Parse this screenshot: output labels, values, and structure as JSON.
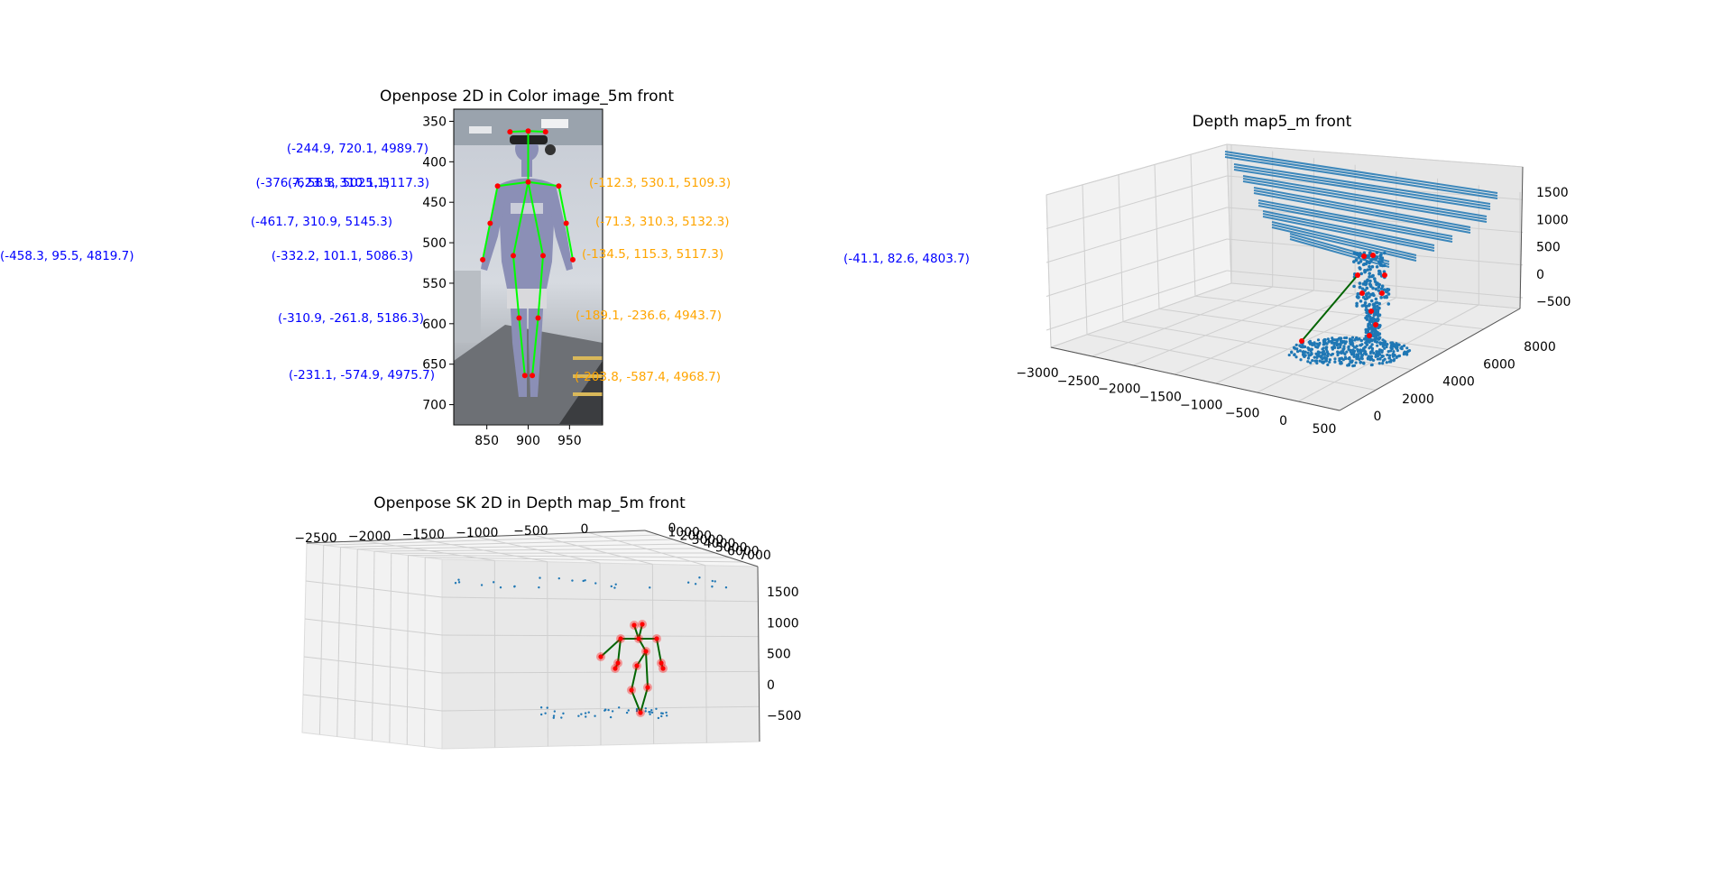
{
  "colors": {
    "blue_ann": "#0000ff",
    "orange_ann": "#ffa500",
    "skeleton_2d": "#00ff00",
    "skeleton_3d": "#006400",
    "joint": "#ff0000",
    "points": "#1f77b4"
  },
  "chart_data": [
    {
      "type": "scatter",
      "title": "Openpose 2D in Color image_5m front",
      "xticks": [
        "850",
        "900",
        "950"
      ],
      "yticks": [
        "350",
        "400",
        "450",
        "500",
        "550",
        "600",
        "650",
        "700"
      ],
      "xlim": [
        810,
        990
      ],
      "ylim": [
        725,
        335
      ],
      "skeleton": {
        "joints": [
          {
            "x": 900,
            "y": 362
          },
          {
            "x": 878,
            "y": 363
          },
          {
            "x": 921,
            "y": 363
          },
          {
            "x": 900,
            "y": 425
          },
          {
            "x": 863,
            "y": 430
          },
          {
            "x": 937,
            "y": 430
          },
          {
            "x": 854,
            "y": 476
          },
          {
            "x": 946,
            "y": 476
          },
          {
            "x": 845,
            "y": 521
          },
          {
            "x": 954,
            "y": 521
          },
          {
            "x": 882,
            "y": 516
          },
          {
            "x": 918,
            "y": 516
          },
          {
            "x": 889,
            "y": 593
          },
          {
            "x": 912,
            "y": 593
          },
          {
            "x": 896,
            "y": 664
          },
          {
            "x": 905,
            "y": 664
          }
        ],
        "edges": [
          [
            0,
            3
          ],
          [
            1,
            0
          ],
          [
            2,
            0
          ],
          [
            3,
            4
          ],
          [
            3,
            5
          ],
          [
            4,
            6
          ],
          [
            6,
            8
          ],
          [
            5,
            7
          ],
          [
            7,
            9
          ],
          [
            3,
            10
          ],
          [
            3,
            11
          ],
          [
            10,
            12
          ],
          [
            12,
            14
          ],
          [
            11,
            13
          ],
          [
            13,
            15
          ]
        ]
      },
      "annotations_left": [
        {
          "text": "(-244.9, 720.1, 4989.7)",
          "y": 369
        },
        {
          "text": "(-376.7, 58.8, 5025.1)",
          "y": 412
        },
        {
          "text": "(-623.5, 310.1, 5117.3)",
          "y": 412
        },
        {
          "text": "(-461.7, 310.9, 5145.3)",
          "y": 456
        },
        {
          "text": "(-332.2, 101.1, 5086.3)",
          "y": 499
        },
        {
          "text": "(-310.9, -261.8, 5186.3)",
          "y": 568
        },
        {
          "text": "(-231.1, -574.9, 4975.7)",
          "y": 636
        }
      ],
      "annotations_right": [
        {
          "text": "(-112.3, 530.1, 5109.3)",
          "y": 412
        },
        {
          "text": "(-71.3, 310.3, 5132.3)",
          "y": 456
        },
        {
          "text": "(-134.5, 115.3, 5117.3)",
          "y": 496
        },
        {
          "text": "(-189.1, -236.6, 4943.7)",
          "y": 564
        },
        {
          "text": "(-203.8, -587.4, 4968.7)",
          "y": 632
        }
      ],
      "annotations_outer": [
        {
          "text": "(-458.3, 95.5, 4819.7)",
          "y": 505
        },
        {
          "text": "(-41.1, 82.6, 4803.7)",
          "y": 507
        }
      ]
    },
    {
      "type": "scatter",
      "title": "Depth map5_m front",
      "xticks": [
        "−3000",
        "−2500",
        "−2000",
        "−1500",
        "−1000",
        "−500",
        "0",
        "500"
      ],
      "yticks": [
        "0",
        "2000",
        "4000",
        "6000",
        "8000"
      ],
      "zticks": [
        "1500",
        "1000",
        "500",
        "0",
        "−500"
      ]
    },
    {
      "type": "scatter",
      "title": "Openpose SK 2D in Depth map_5m front",
      "xticks": [
        "−2500",
        "−2000",
        "−1500",
        "−1000",
        "−500",
        "0"
      ],
      "yticks": [
        "0",
        "1000",
        "2000",
        "3000",
        "4000",
        "5000",
        "6000",
        "7000"
      ],
      "zticks": [
        "1500",
        "1000",
        "500",
        "0",
        "−500"
      ]
    }
  ]
}
